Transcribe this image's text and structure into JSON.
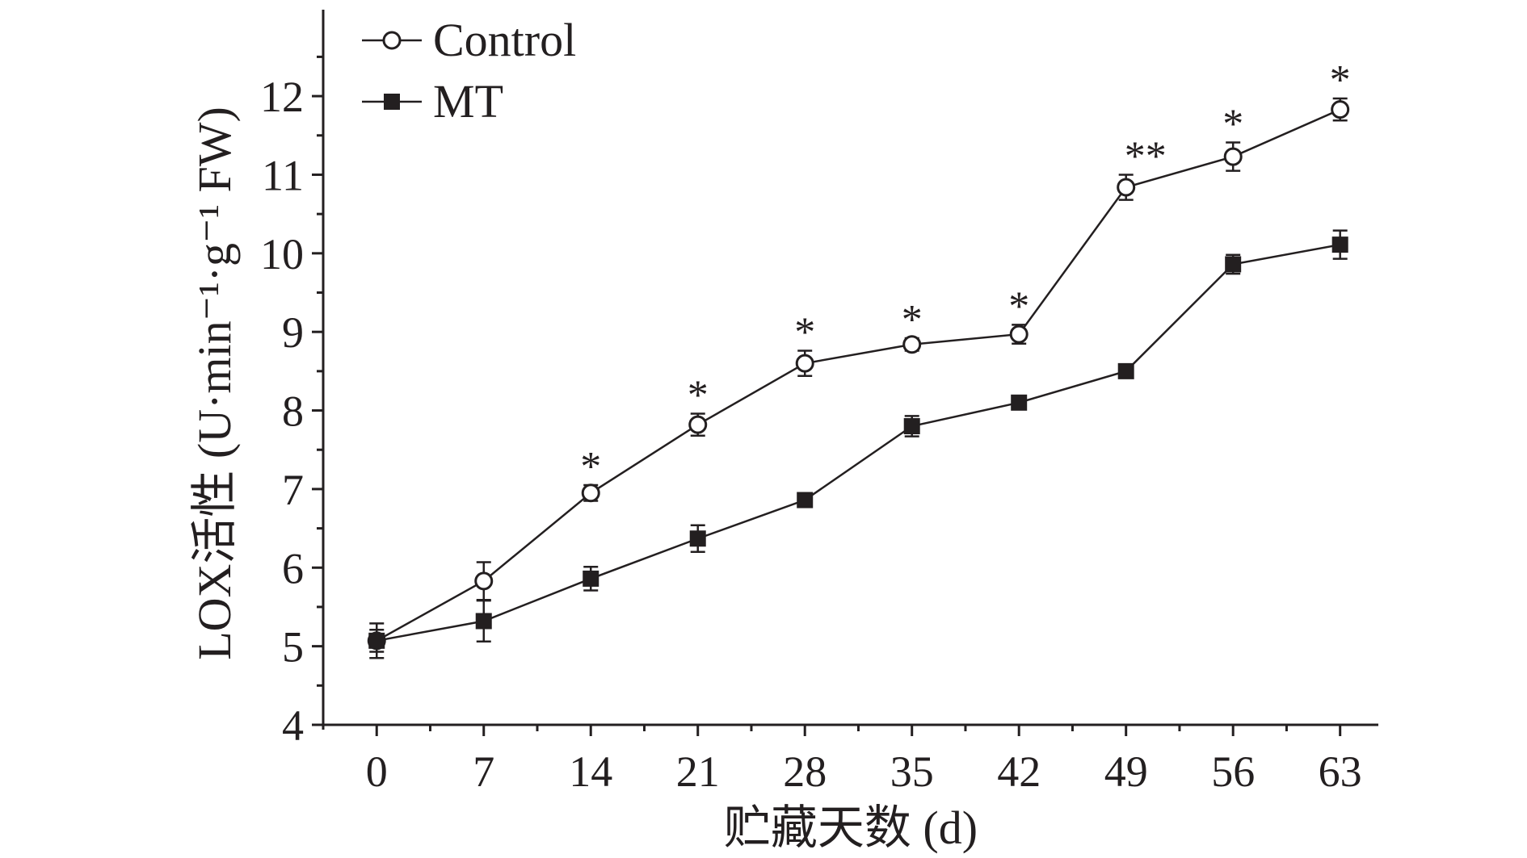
{
  "chart_data": {
    "type": "line",
    "ylabel": "LOX活性 (U·min⁻¹·g⁻¹ FW)",
    "xlabel": "贮藏天数 (d)",
    "x": [
      0,
      7,
      14,
      21,
      28,
      35,
      42,
      49,
      56,
      63
    ],
    "x_ticks": [
      "0",
      "7",
      "14",
      "21",
      "28",
      "35",
      "42",
      "49",
      "56",
      "63"
    ],
    "y_ticks": [
      "4",
      "5",
      "6",
      "7",
      "8",
      "9",
      "10",
      "11",
      "12"
    ],
    "xlim": [
      -3.5,
      65.5
    ],
    "ylim": [
      4,
      13.1
    ],
    "legend_position": "top-left",
    "series": [
      {
        "name": "Control",
        "marker": "open-circle",
        "values": [
          5.07,
          5.83,
          6.95,
          7.82,
          8.6,
          8.84,
          8.97,
          10.84,
          11.23,
          11.83
        ],
        "errors": [
          0.22,
          0.24,
          0.1,
          0.14,
          0.16,
          0.08,
          0.12,
          0.16,
          0.18,
          0.14
        ]
      },
      {
        "name": "MT",
        "marker": "filled-square",
        "values": [
          5.07,
          5.32,
          5.86,
          6.37,
          6.86,
          7.8,
          8.1,
          8.5,
          9.86,
          10.11
        ],
        "errors": [
          0.14,
          0.26,
          0.15,
          0.17,
          0.07,
          0.13,
          0.07,
          0.06,
          0.12,
          0.18
        ]
      }
    ],
    "annotations": [
      {
        "x": 14,
        "text": "*"
      },
      {
        "x": 21,
        "text": "*"
      },
      {
        "x": 28,
        "text": "*"
      },
      {
        "x": 35,
        "text": "*"
      },
      {
        "x": 42,
        "text": "*"
      },
      {
        "x": 49,
        "text": "**"
      },
      {
        "x": 56,
        "text": "*"
      },
      {
        "x": 63,
        "text": "*"
      }
    ],
    "colors": {
      "line": "#231f20",
      "marker_fill_open": "#ffffff",
      "marker_fill_solid": "#231f20"
    }
  }
}
